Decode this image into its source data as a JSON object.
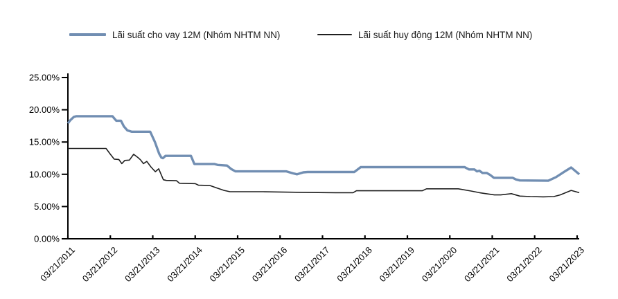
{
  "chart_data": {
    "type": "line",
    "title": "",
    "grid": false,
    "legend_position": "top",
    "x_axis": {
      "tick_labels": [
        "03/21/2011",
        "03/21/2012",
        "03/21/2013",
        "03/21/2014",
        "03/21/2015",
        "03/21/2016",
        "03/21/2017",
        "03/21/2018",
        "03/21/2019",
        "03/21/2020",
        "03/21/2021",
        "03/21/2022",
        "03/21/2023"
      ],
      "range_years": [
        0,
        12.05
      ]
    },
    "y_axis": {
      "tick_labels": [
        "0.00%",
        "5.00%",
        "10.00%",
        "15.00%",
        "20.00%",
        "25.00%"
      ],
      "min": 0,
      "max": 25,
      "step": 5
    },
    "series": [
      {
        "name": "Lãi suất cho vay 12M (Nhóm NHTM NN)",
        "color": "#718EB2",
        "stroke_width": 3.4,
        "points": [
          [
            0,
            17.9
          ],
          [
            0.06,
            18.4
          ],
          [
            0.14,
            18.9
          ],
          [
            0.2,
            19.0
          ],
          [
            1.05,
            19.0
          ],
          [
            1.1,
            18.6
          ],
          [
            1.14,
            18.3
          ],
          [
            1.25,
            18.3
          ],
          [
            1.32,
            17.4
          ],
          [
            1.4,
            16.8
          ],
          [
            1.5,
            16.6
          ],
          [
            1.94,
            16.6
          ],
          [
            2.05,
            15.0
          ],
          [
            2.15,
            13.2
          ],
          [
            2.2,
            12.6
          ],
          [
            2.24,
            12.5
          ],
          [
            2.3,
            12.85
          ],
          [
            2.9,
            12.85
          ],
          [
            2.98,
            11.6
          ],
          [
            3.45,
            11.6
          ],
          [
            3.53,
            11.45
          ],
          [
            3.75,
            11.35
          ],
          [
            3.85,
            10.8
          ],
          [
            3.95,
            10.45
          ],
          [
            5.15,
            10.45
          ],
          [
            5.3,
            10.15
          ],
          [
            5.4,
            10.0
          ],
          [
            5.55,
            10.3
          ],
          [
            5.65,
            10.35
          ],
          [
            6.75,
            10.35
          ],
          [
            6.82,
            10.7
          ],
          [
            6.9,
            11.1
          ],
          [
            9.35,
            11.1
          ],
          [
            9.45,
            10.75
          ],
          [
            9.58,
            10.75
          ],
          [
            9.64,
            10.45
          ],
          [
            9.7,
            10.55
          ],
          [
            9.77,
            10.2
          ],
          [
            9.87,
            10.2
          ],
          [
            9.95,
            9.9
          ],
          [
            10.04,
            9.45
          ],
          [
            10.48,
            9.45
          ],
          [
            10.56,
            9.2
          ],
          [
            10.65,
            9.05
          ],
          [
            11.32,
            9.0
          ],
          [
            11.5,
            9.55
          ],
          [
            11.7,
            10.4
          ],
          [
            11.86,
            11.05
          ],
          [
            12.05,
            10.0
          ]
        ]
      },
      {
        "name": "Lãi suất huy động 12M (Nhóm NHTM NN)",
        "color": "#1f1f1f",
        "stroke_width": 1.6,
        "points": [
          [
            0,
            14.0
          ],
          [
            0.9,
            14.0
          ],
          [
            1.0,
            13.1
          ],
          [
            1.09,
            12.35
          ],
          [
            1.2,
            12.3
          ],
          [
            1.27,
            11.65
          ],
          [
            1.34,
            12.15
          ],
          [
            1.45,
            12.2
          ],
          [
            1.55,
            13.1
          ],
          [
            1.65,
            12.6
          ],
          [
            1.71,
            12.25
          ],
          [
            1.78,
            11.65
          ],
          [
            1.86,
            12.0
          ],
          [
            1.96,
            11.1
          ],
          [
            2.06,
            10.4
          ],
          [
            2.14,
            10.85
          ],
          [
            2.25,
            9.15
          ],
          [
            2.32,
            9.05
          ],
          [
            2.56,
            9.0
          ],
          [
            2.63,
            8.6
          ],
          [
            3.0,
            8.55
          ],
          [
            3.08,
            8.3
          ],
          [
            3.35,
            8.25
          ],
          [
            3.5,
            7.9
          ],
          [
            3.68,
            7.5
          ],
          [
            3.82,
            7.3
          ],
          [
            4.6,
            7.3
          ],
          [
            5.5,
            7.2
          ],
          [
            6.3,
            7.15
          ],
          [
            6.72,
            7.15
          ],
          [
            6.8,
            7.45
          ],
          [
            8.35,
            7.45
          ],
          [
            8.45,
            7.75
          ],
          [
            9.2,
            7.75
          ],
          [
            9.5,
            7.4
          ],
          [
            9.7,
            7.15
          ],
          [
            9.85,
            7.0
          ],
          [
            10.05,
            6.8
          ],
          [
            10.2,
            6.8
          ],
          [
            10.45,
            7.0
          ],
          [
            10.65,
            6.62
          ],
          [
            10.9,
            6.55
          ],
          [
            11.2,
            6.5
          ],
          [
            11.45,
            6.55
          ],
          [
            11.6,
            6.8
          ],
          [
            11.86,
            7.5
          ],
          [
            12.05,
            7.15
          ]
        ]
      }
    ],
    "axis_color": "#000000"
  }
}
